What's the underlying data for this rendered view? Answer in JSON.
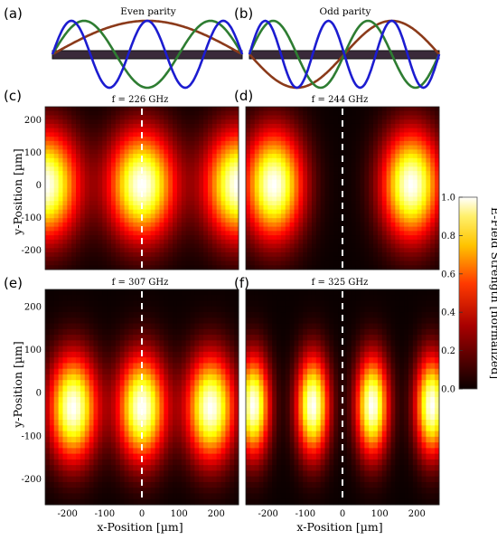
{
  "chart_data": {
    "type": "heatmap",
    "parity_panels": [
      {
        "letter": "(a)",
        "title": "Even parity",
        "mode_parity": "even",
        "curves": [
          {
            "color": "#8b3a1a",
            "half_wavelengths": 1
          },
          {
            "color": "#2e7d32",
            "half_wavelengths": 3
          },
          {
            "color": "#1c1cd0",
            "half_wavelengths": 5
          }
        ]
      },
      {
        "letter": "(b)",
        "title": "Odd parity",
        "mode_parity": "odd",
        "curves": [
          {
            "color": "#8b3a1a",
            "half_wavelengths": 2
          },
          {
            "color": "#2e7d32",
            "half_wavelengths": 4
          },
          {
            "color": "#1c1cd0",
            "half_wavelengths": 6
          }
        ]
      }
    ],
    "field_maps": [
      {
        "letter": "(c)",
        "frequency": "f = 226 GHz",
        "frequency_ghz": 226,
        "lobe_centers_um": [
          -260,
          0,
          260
        ],
        "lobe_y_um": 0,
        "sigma_x_um": 62,
        "sigma_y_um": 115
      },
      {
        "letter": "(d)",
        "frequency": "f = 244 GHz",
        "frequency_ghz": 244,
        "lobe_centers_um": [
          -185,
          185
        ],
        "lobe_y_um": 0,
        "sigma_x_um": 55,
        "sigma_y_um": 115
      },
      {
        "letter": "(e)",
        "frequency": "f = 307 GHz",
        "frequency_ghz": 307,
        "lobe_centers_um": [
          -185,
          0,
          185
        ],
        "lobe_y_um": -35,
        "sigma_x_um": 45,
        "sigma_y_um": 85
      },
      {
        "letter": "(f)",
        "frequency": "f = 325 GHz",
        "frequency_ghz": 325,
        "lobe_centers_um": [
          -240,
          -80,
          80,
          240
        ],
        "lobe_y_um": -30,
        "sigma_x_um": 30,
        "sigma_y_um": 80
      }
    ],
    "xlabel": "x-Position [µm]",
    "ylabel": "y-Position [µm]",
    "colorbar_label": "E-Field Strength [normalized]",
    "x_ticks": [
      -200,
      -100,
      0,
      100,
      200
    ],
    "y_ticks": [
      200,
      100,
      0,
      -100,
      -200
    ],
    "colorbar_ticks": [
      "1.0",
      "0.8",
      "0.6",
      "0.4",
      "0.2",
      "0.0"
    ],
    "xlim": [
      -260,
      260
    ],
    "ylim": [
      -260,
      240
    ],
    "clim": [
      0,
      1
    ],
    "colormap": "hot",
    "center_line_x_um": 0
  }
}
